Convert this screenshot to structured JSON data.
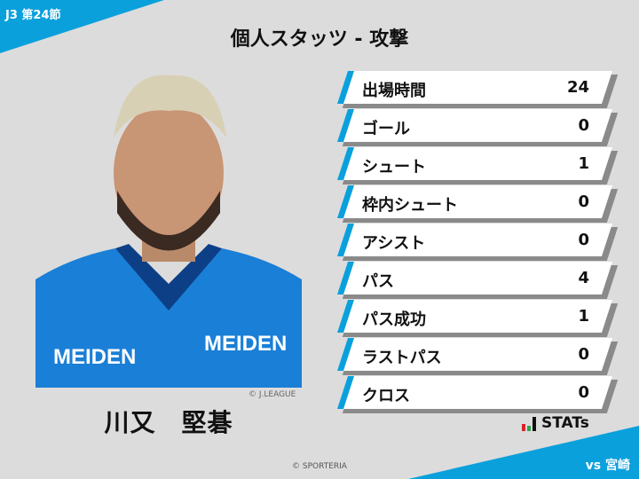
{
  "header": {
    "round": "J3 第24節",
    "title": "個人スタッツ - 攻撃",
    "opponent": "vs 宮崎"
  },
  "player": {
    "name": "川又　堅碁",
    "photo_credit": "© J.LEAGUE",
    "jersey_sponsor": "MEIDEN"
  },
  "stats": [
    {
      "label": "出場時間",
      "value": "24"
    },
    {
      "label": "ゴール",
      "value": "0"
    },
    {
      "label": "シュート",
      "value": "1"
    },
    {
      "label": "枠内シュート",
      "value": "0"
    },
    {
      "label": "アシスト",
      "value": "0"
    },
    {
      "label": "パス",
      "value": "4"
    },
    {
      "label": "パス成功",
      "value": "1"
    },
    {
      "label": "ラストパス",
      "value": "0"
    },
    {
      "label": "クロス",
      "value": "0"
    }
  ],
  "logo": {
    "text": "STATs"
  },
  "footer": {
    "copyright": "© SPORTERIA"
  },
  "colors": {
    "accent": "#0aa0dc",
    "background": "#dcdcdc"
  }
}
